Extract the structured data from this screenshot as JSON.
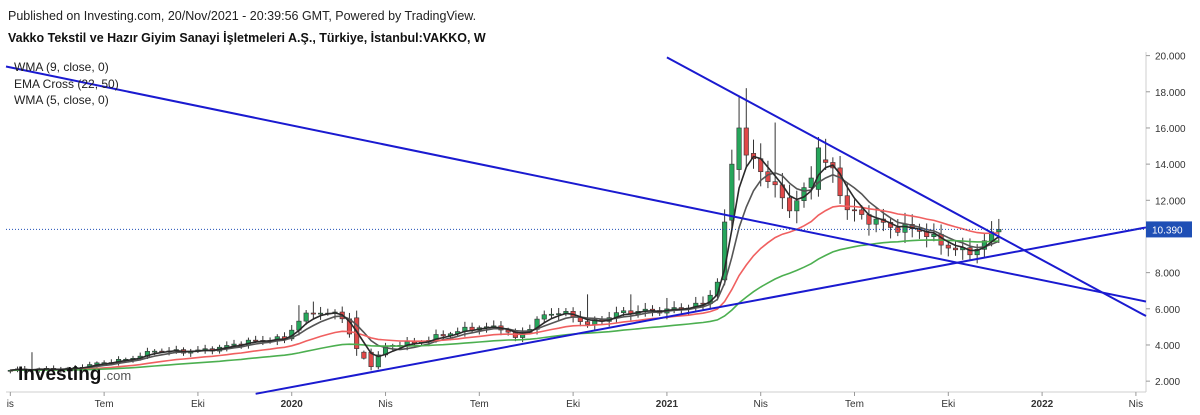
{
  "header": {
    "published": "Published on Investing.com, 20/Nov/2021 - 20:39:56 GMT, Powered by TradingView.",
    "title": "Vakko Tekstil ve Hazır Giyim Sanayi İşletmeleri A.Ş., Türkiye, İstanbul:VAKKO, W"
  },
  "indicators": [
    "WMA (9, close, 0)",
    "EMA Cross (22, 50)",
    "WMA (5, close, 0)"
  ],
  "logo": {
    "main": "Investing",
    "suffix": ".com"
  },
  "colors": {
    "up": "#26a65b",
    "down": "#e04848",
    "wma9": "#555555",
    "ema22": "#f06060",
    "ema50": "#4caf50",
    "wma5": "#2a2a2a",
    "trendline": "#1a1ad0",
    "price_label_bg": "#1f4fb5"
  },
  "chart_data": {
    "type": "candlestick",
    "y_axis": {
      "range": [
        1.4,
        20.2
      ],
      "ticks": [
        "2.000",
        "4.000",
        "6.000",
        "8.000",
        "10.000",
        "12.000",
        "14.000",
        "16.000",
        "18.000",
        "20.000"
      ],
      "tick_values": [
        2,
        4,
        6,
        8,
        10,
        12,
        14,
        16,
        18,
        20
      ],
      "position": "right"
    },
    "x_axis": {
      "ticks": [
        {
          "label": "is",
          "t": 0.0,
          "bold": false
        },
        {
          "label": "Tem",
          "t": 13.0,
          "bold": false
        },
        {
          "label": "Eki",
          "t": 26.0,
          "bold": false
        },
        {
          "label": "2020",
          "t": 39.0,
          "bold": true
        },
        {
          "label": "Nis",
          "t": 52.0,
          "bold": false
        },
        {
          "label": "Tem",
          "t": 65.0,
          "bold": false
        },
        {
          "label": "Eki",
          "t": 78.0,
          "bold": false
        },
        {
          "label": "2021",
          "t": 91.0,
          "bold": true
        },
        {
          "label": "Nis",
          "t": 104.0,
          "bold": false
        },
        {
          "label": "Tem",
          "t": 117.0,
          "bold": false
        },
        {
          "label": "Eki",
          "t": 130.0,
          "bold": false
        },
        {
          "label": "2022",
          "t": 143.0,
          "bold": true
        },
        {
          "label": "Nis",
          "t": 156.0,
          "bold": false
        }
      ],
      "range": [
        -0.6,
        157.4
      ]
    },
    "last_price": {
      "value": 10.39,
      "label": "10.390"
    },
    "price_anchors": [
      [
        0,
        2.6
      ],
      [
        8,
        2.7
      ],
      [
        16,
        3.2
      ],
      [
        20,
        3.7
      ],
      [
        24,
        3.6
      ],
      [
        28,
        3.8
      ],
      [
        32,
        4.1
      ],
      [
        38,
        4.4
      ],
      [
        40,
        5.4
      ],
      [
        42,
        5.8
      ],
      [
        46,
        5.6
      ],
      [
        48,
        3.6
      ],
      [
        50,
        2.9
      ],
      [
        52,
        3.9
      ],
      [
        56,
        4.1
      ],
      [
        60,
        4.6
      ],
      [
        64,
        4.9
      ],
      [
        68,
        5.0
      ],
      [
        70,
        4.4
      ],
      [
        72,
        5.0
      ],
      [
        74,
        5.6
      ],
      [
        76,
        5.8
      ],
      [
        78,
        5.6
      ],
      [
        80,
        5.2
      ],
      [
        82,
        5.4
      ],
      [
        84,
        5.7
      ],
      [
        88,
        5.9
      ],
      [
        92,
        6.0
      ],
      [
        96,
        6.2
      ],
      [
        98,
        7.5
      ],
      [
        99,
        10.5
      ],
      [
        100,
        13.5
      ],
      [
        101,
        15.5
      ],
      [
        102,
        14.5
      ],
      [
        104,
        13.7
      ],
      [
        106,
        12.5
      ],
      [
        108,
        11.6
      ],
      [
        110,
        12.5
      ],
      [
        112,
        14.5
      ],
      [
        114,
        13.5
      ],
      [
        116,
        11.4
      ],
      [
        118,
        11.1
      ],
      [
        120,
        10.9
      ],
      [
        122,
        10.6
      ],
      [
        124,
        10.4
      ],
      [
        126,
        10.3
      ],
      [
        128,
        9.8
      ],
      [
        130,
        9.5
      ],
      [
        132,
        9.2
      ],
      [
        134,
        9.3
      ],
      [
        136,
        10.0
      ],
      [
        137,
        10.39
      ]
    ],
    "big_moves": [
      {
        "t": 99,
        "open": 7.6,
        "close": 10.8,
        "high": 11.5,
        "low": 7.3
      },
      {
        "t": 100,
        "open": 10.9,
        "close": 14.0,
        "high": 14.8,
        "low": 10.3
      },
      {
        "t": 101,
        "open": 13.7,
        "close": 16.0,
        "high": 17.8,
        "low": 13.1
      },
      {
        "t": 102,
        "open": 16.0,
        "close": 14.5,
        "high": 18.2,
        "low": 13.8
      },
      {
        "t": 112,
        "open": 12.6,
        "close": 14.9,
        "high": 15.5,
        "low": 12.2
      },
      {
        "t": 48,
        "open": 5.5,
        "close": 3.8,
        "high": 5.9,
        "low": 3.4
      },
      {
        "t": 50,
        "open": 3.6,
        "close": 2.8,
        "high": 3.8,
        "low": 2.6
      }
    ],
    "spike_highs": [
      {
        "t": 40,
        "high": 6.2
      },
      {
        "t": 42,
        "high": 6.4
      },
      {
        "t": 80,
        "high": 6.8
      },
      {
        "t": 86,
        "high": 6.8
      },
      {
        "t": 91,
        "high": 6.6
      },
      {
        "t": 106,
        "high": 16.3
      },
      {
        "t": 113,
        "high": 15.4
      },
      {
        "t": 3,
        "high": 3.6
      }
    ],
    "trendlines": [
      {
        "name": "upper-resistance",
        "points": [
          [
            -0.6,
            19.4
          ],
          [
            157.4,
            6.4
          ]
        ]
      },
      {
        "name": "steep-resistance",
        "points": [
          [
            91,
            19.9
          ],
          [
            157.4,
            5.6
          ]
        ]
      },
      {
        "name": "rising-support",
        "points": [
          [
            34,
            1.3
          ],
          [
            157.4,
            10.5
          ]
        ]
      }
    ],
    "indicator_lines": [
      {
        "name": "WMA (9, close, 0)",
        "key": "wma9"
      },
      {
        "name": "EMA Cross (22, 50)",
        "key": "ema22"
      },
      {
        "name": "EMA Cross (22, 50)",
        "key": "ema50"
      },
      {
        "name": "WMA (5, close, 0)",
        "key": "wma5"
      }
    ]
  }
}
